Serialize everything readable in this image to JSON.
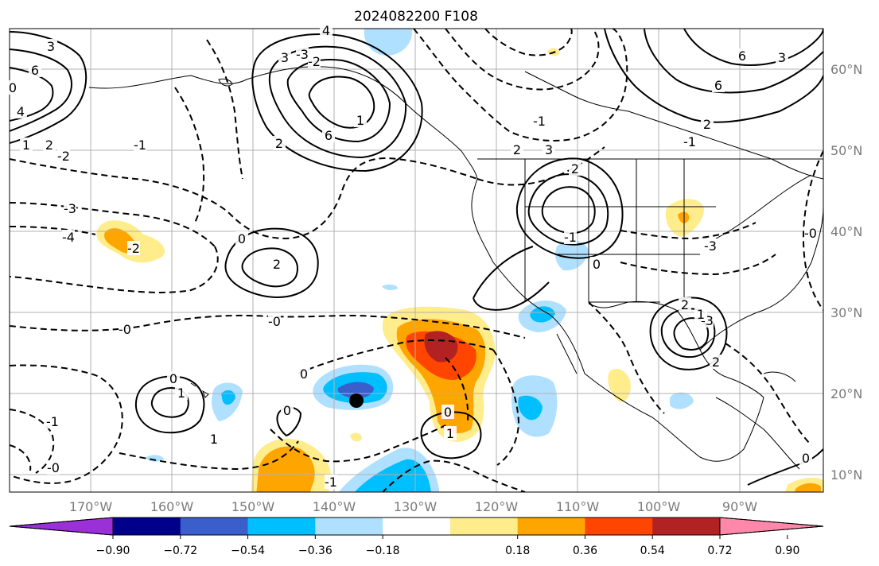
{
  "map": {
    "title": "2024082200 F108",
    "lat_labels": [
      "60°N",
      "50°N",
      "40°N",
      "30°N",
      "20°N",
      "10°N"
    ],
    "lon_labels": [
      "170°W",
      "160°W",
      "150°W",
      "140°W",
      "130°W",
      "120°W",
      "110°W",
      "100°W",
      "90°W"
    ],
    "contour_labels": [
      "3",
      "6",
      "4",
      "0",
      "1",
      "2",
      "-2",
      "-3",
      "-4",
      "-1",
      "6",
      "1",
      "2",
      "3",
      "-3",
      "-2",
      "-1",
      "2",
      "3",
      "2",
      "0",
      "-1",
      "-0",
      "-0",
      "0",
      "0",
      "1",
      "0",
      "-1",
      "1",
      "-0",
      "-1",
      "0",
      "1",
      "-2",
      "2",
      "0",
      "6",
      "3",
      "6",
      "4",
      "2",
      "-1",
      "-0",
      "-3",
      "2",
      "-3",
      "1",
      "2",
      "0"
    ],
    "marker": "tropical cyclone position"
  },
  "colorbar": {
    "ticks": [
      "−0.90",
      "−0.72",
      "−0.54",
      "−0.36",
      "−0.18",
      "0.18",
      "0.36",
      "0.54",
      "0.72",
      "0.90"
    ],
    "colors": [
      "#9b30d9",
      "#00008b",
      "#3a5fcd",
      "#00bfff",
      "#b0e0ff",
      "#ffffff",
      "#ffec8b",
      "#ffa500",
      "#ff4500",
      "#b22222",
      "#ff88aa"
    ]
  }
}
